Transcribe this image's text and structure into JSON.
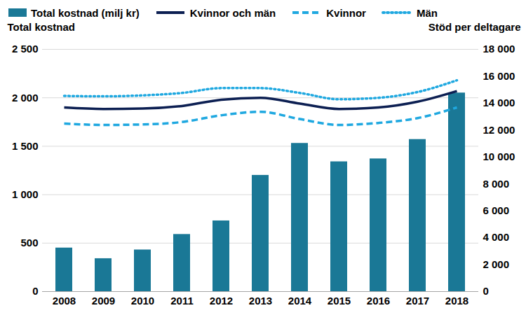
{
  "chart_data": {
    "type": "bar",
    "categories": [
      "2008",
      "2009",
      "2010",
      "2011",
      "2012",
      "2013",
      "2014",
      "2015",
      "2016",
      "2017",
      "2018"
    ],
    "series": [
      {
        "name": "Total kostnad (milj kr)",
        "type": "bar",
        "color": "#1a7896",
        "values": [
          450,
          340,
          430,
          590,
          730,
          1200,
          1530,
          1340,
          1370,
          1570,
          2050
        ]
      },
      {
        "name": "Kvinnor och män",
        "type": "line",
        "axis": "y2",
        "color": "#0c1f52",
        "line_style": "solid",
        "values": [
          13680,
          13570,
          13600,
          13790,
          14260,
          14400,
          13970,
          13570,
          13680,
          14110,
          14900
        ]
      },
      {
        "name": "Kvinnor",
        "type": "line",
        "axis": "y2",
        "color": "#1fa8e0",
        "line_style": "dashed",
        "values": [
          12490,
          12380,
          12420,
          12600,
          13100,
          13360,
          12820,
          12380,
          12530,
          12890,
          13680
        ]
      },
      {
        "name": "Män",
        "type": "line",
        "axis": "y2",
        "color": "#1fa8e0",
        "line_style": "dotted",
        "values": [
          14540,
          14510,
          14580,
          14760,
          15120,
          15120,
          14760,
          14290,
          14400,
          14830,
          15700
        ]
      }
    ],
    "ylabel": "Total kostnad",
    "y2label": "Stöd per deltagare",
    "ylim": [
      0,
      2500
    ],
    "yticks": [
      0,
      500,
      {
        "value": 1000,
        "label": "1 000"
      },
      {
        "value": 1500,
        "label": "1 500"
      },
      {
        "value": 2000,
        "label": "2 000"
      },
      {
        "value": 2500,
        "label": "2 500"
      }
    ],
    "y2lim": [
      0,
      18000
    ],
    "y2ticks": [
      0,
      {
        "value": 2000,
        "label": "2 000"
      },
      {
        "value": 4000,
        "label": "4 000"
      },
      {
        "value": 6000,
        "label": "6 000"
      },
      {
        "value": 8000,
        "label": "8 000"
      },
      {
        "value": 10000,
        "label": "10 000"
      },
      {
        "value": 12000,
        "label": "12 000"
      },
      {
        "value": 14000,
        "label": "14 000"
      },
      {
        "value": 16000,
        "label": "16 000"
      },
      {
        "value": 18000,
        "label": "18 000"
      }
    ],
    "grid": true,
    "legend": "top"
  }
}
